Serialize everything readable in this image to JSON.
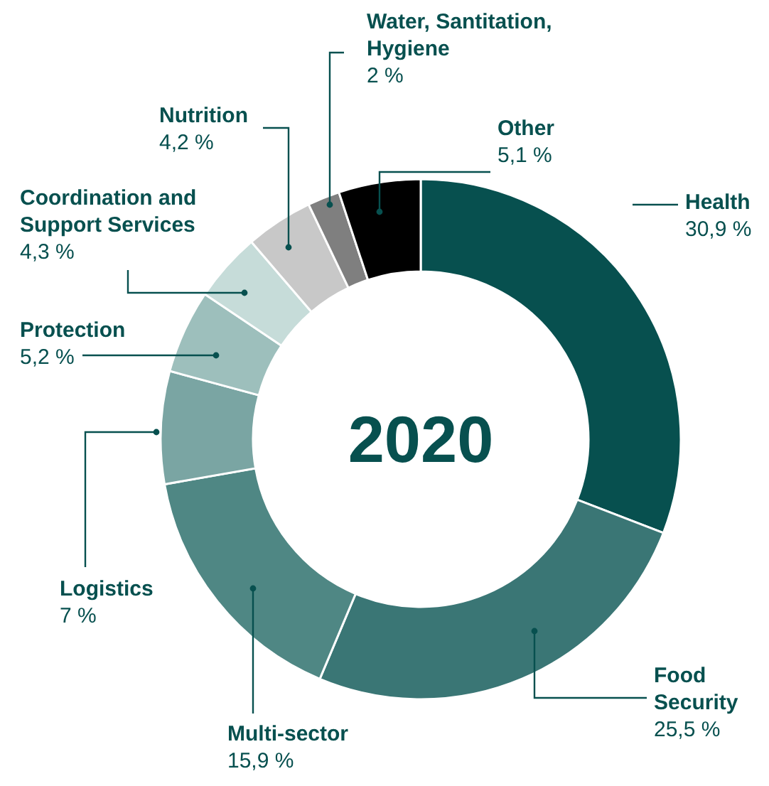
{
  "chart_data": {
    "type": "donut",
    "title": "2020",
    "categories": [
      "Health",
      "Food Security",
      "Multi-sector",
      "Logistics",
      "Protection",
      "Coordination and Support Services",
      "Nutrition",
      "Water, Santitation, Hygiene",
      "Other"
    ],
    "values": [
      30.9,
      25.5,
      15.9,
      7,
      5.2,
      4.3,
      4.2,
      2,
      5.1
    ],
    "colors": [
      "#07504f",
      "#3a7675",
      "#4f8784",
      "#7aa5a3",
      "#9dbfbc",
      "#c6dcd9",
      "#c8c8c8",
      "#7f7f7f",
      "#000000"
    ],
    "value_labels": [
      "30,9 %",
      "25,5 %",
      "15,9 %",
      "7 %",
      "5,2 %",
      "4,3 %",
      "4,2 %",
      "2 %",
      "5,1 %"
    ]
  }
}
